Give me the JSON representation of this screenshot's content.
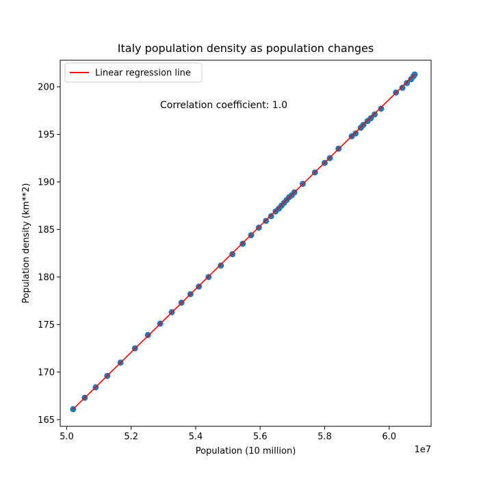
{
  "chart_data": {
    "type": "scatter",
    "title": "Italy population density as population changes",
    "xlabel": "Population (10 million)",
    "ylabel": "Population density (km**2)",
    "x_offset_text": "1e7",
    "xlim": [
      4.98,
      6.13
    ],
    "ylim": [
      164.3,
      202.8
    ],
    "x_ticks": [
      5.0,
      5.2,
      5.4,
      5.6,
      5.8,
      6.0
    ],
    "x_tick_labels": [
      "5.0",
      "5.2",
      "5.4",
      "5.6",
      "5.8",
      "6.0"
    ],
    "y_ticks": [
      165,
      170,
      175,
      180,
      185,
      190,
      195,
      200
    ],
    "y_tick_labels": [
      "165",
      "170",
      "175",
      "180",
      "185",
      "190",
      "195",
      "200"
    ],
    "annotation": "Correlation coefficient: 1.0",
    "legend": {
      "placement": "upper-left",
      "entries": [
        {
          "label": "Linear regression line",
          "color": "#ff0000"
        }
      ]
    },
    "series": [
      {
        "color": "#1f77b4",
        "x": [
          5.02,
          5.056,
          5.09,
          5.126,
          5.167,
          5.212,
          5.252,
          5.29,
          5.326,
          5.356,
          5.384,
          5.41,
          5.44,
          5.478,
          5.514,
          5.546,
          5.572,
          5.596,
          5.618,
          5.634,
          5.648,
          5.658,
          5.666,
          5.674,
          5.682,
          5.69,
          5.698,
          5.706,
          5.732,
          5.77,
          5.8,
          5.816,
          5.843,
          5.884,
          5.896,
          5.912,
          5.92,
          5.933,
          5.943,
          5.955,
          5.975,
          6.021,
          6.041,
          6.055,
          6.068,
          6.075,
          6.079
        ],
        "y": [
          166.1,
          167.3,
          168.4,
          169.6,
          171.0,
          172.5,
          173.9,
          175.1,
          176.3,
          177.3,
          178.2,
          179.0,
          180.0,
          181.2,
          182.4,
          183.5,
          184.4,
          185.2,
          185.9,
          186.4,
          186.9,
          187.2,
          187.5,
          187.8,
          188.1,
          188.4,
          188.6,
          188.9,
          189.8,
          191.0,
          192.0,
          192.5,
          193.5,
          194.8,
          195.1,
          195.7,
          196.0,
          196.4,
          196.7,
          197.1,
          197.7,
          199.4,
          199.9,
          200.4,
          200.8,
          201.1,
          201.3
        ]
      }
    ],
    "regression": {
      "color": "#ff0000",
      "x": [
        5.02,
        6.079
      ],
      "y": [
        166.1,
        201.3
      ]
    }
  }
}
